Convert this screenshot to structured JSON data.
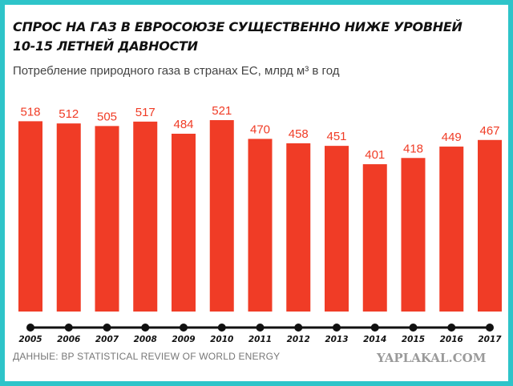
{
  "title_line1": "СПРОС НА ГАЗ В ЕВРОСОЮЗЕ СУЩЕСТВЕННО НИЖЕ УРОВНЕЙ",
  "title_line2": "10-15 ЛЕТНЕЙ ДАВНОСТИ",
  "subtitle": "Потребление природного газа в странах ЕС, млрд м³ в год",
  "source": "ДАННЫЕ: BP STATISTICAL REVIEW OF WORLD ENERGY",
  "watermark": "YAPLAKAL.COM",
  "colors": {
    "bar": "#f03c26",
    "frame": "#2ec4c9",
    "axis": "#111111",
    "value_label": "#f03c26"
  },
  "chart_data": {
    "type": "bar",
    "title": "СПРОС НА ГАЗ В ЕВРОСОЮЗЕ СУЩЕСТВЕННО НИЖЕ УРОВНЕЙ 10-15 ЛЕТНЕЙ ДАВНОСТИ",
    "subtitle": "Потребление природного газа в странах ЕС, млрд м³ в год",
    "categories": [
      "2005",
      "2006",
      "2007",
      "2008",
      "2009",
      "2010",
      "2011",
      "2012",
      "2013",
      "2014",
      "2015",
      "2016",
      "2017"
    ],
    "values": [
      518,
      512,
      505,
      517,
      484,
      521,
      470,
      458,
      451,
      401,
      418,
      449,
      467
    ],
    "xlabel": "",
    "ylabel": "",
    "grid": false,
    "legend": "none"
  }
}
